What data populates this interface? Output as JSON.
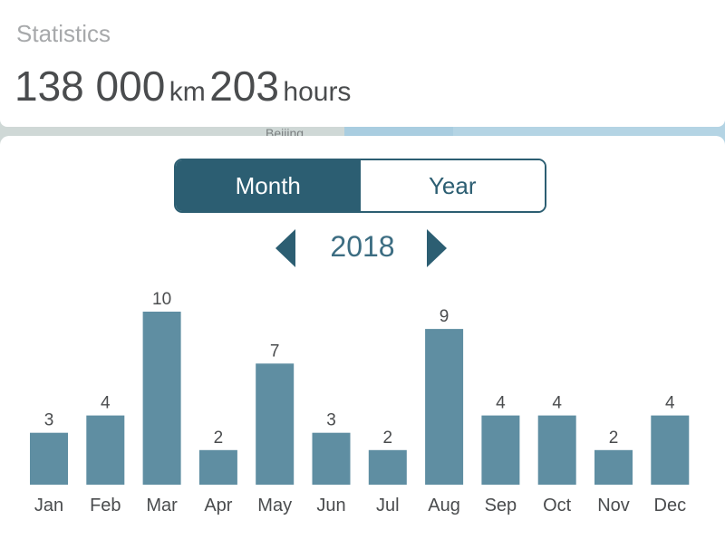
{
  "stats": {
    "title": "Statistics",
    "distance_value": "138 000",
    "distance_unit": "km",
    "time_value": "203",
    "time_unit": "hours"
  },
  "map": {
    "label": "Beijing"
  },
  "period_toggle": {
    "month_label": "Month",
    "year_label": "Year",
    "selected": "Month"
  },
  "year_nav": {
    "year": "2018"
  },
  "colors": {
    "accent": "#2c5e72",
    "bar": "#5f8ea2",
    "label": "#4a4c4e"
  },
  "chart_data": {
    "type": "bar",
    "categories": [
      "Jan",
      "Feb",
      "Mar",
      "Apr",
      "May",
      "Jun",
      "Jul",
      "Aug",
      "Sep",
      "Oct",
      "Nov",
      "Dec"
    ],
    "values": [
      3,
      4,
      10,
      2,
      7,
      3,
      2,
      9,
      4,
      4,
      2,
      4
    ],
    "data_labels": [
      "3",
      "4",
      "10",
      "2",
      "7",
      "3",
      "2",
      "9",
      "4",
      "4",
      "2",
      "4"
    ],
    "ylim": [
      0,
      10
    ],
    "grid": false,
    "xlabel": "",
    "ylabel": ""
  }
}
